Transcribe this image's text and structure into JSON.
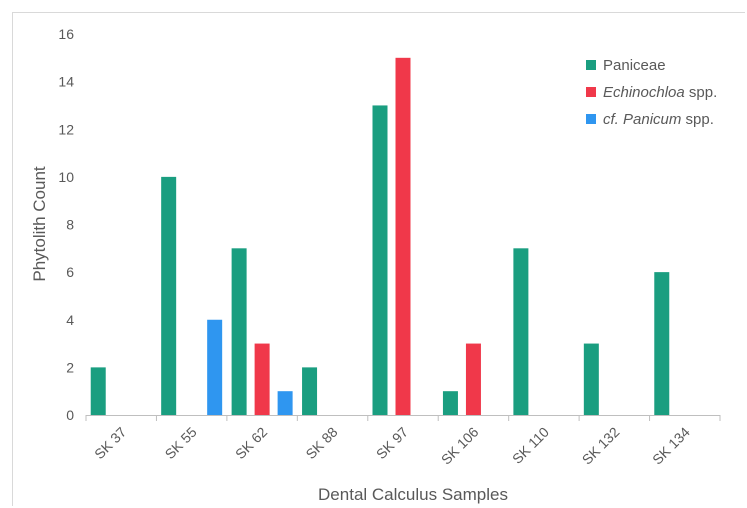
{
  "chart_data": {
    "type": "bar",
    "title": "",
    "xlabel": "Dental Calculus Samples",
    "ylabel": "Phytolith Count",
    "ylim": [
      0,
      16
    ],
    "yticks": [
      0,
      2,
      4,
      6,
      8,
      10,
      12,
      14,
      16
    ],
    "grid": false,
    "legend_position": "top-right",
    "categories": [
      "SK 37",
      "SK 55",
      "SK 62",
      "SK 88",
      "SK 97",
      "SK 106",
      "SK 110",
      "SK 132",
      "SK 134"
    ],
    "series": [
      {
        "name": "Paniceae",
        "name_parts": [
          {
            "text": "Paniceae",
            "italic": false
          }
        ],
        "color": "#1a9e80",
        "values": [
          2,
          10,
          7,
          2,
          13,
          1,
          7,
          3,
          6
        ]
      },
      {
        "name": "Echinochloa spp.",
        "name_parts": [
          {
            "text": "Echinochloa",
            "italic": true
          },
          {
            "text": " spp.",
            "italic": false
          }
        ],
        "color": "#f0384a",
        "values": [
          0,
          0,
          3,
          0,
          15,
          3,
          0,
          0,
          0
        ]
      },
      {
        "name": "cf. Panicum spp.",
        "name_parts": [
          {
            "text": "cf. Panicum",
            "italic": true
          },
          {
            "text": " spp.",
            "italic": false
          }
        ],
        "color": "#2f96f0",
        "values": [
          0,
          4,
          1,
          0,
          0,
          0,
          0,
          0,
          0
        ]
      }
    ]
  }
}
